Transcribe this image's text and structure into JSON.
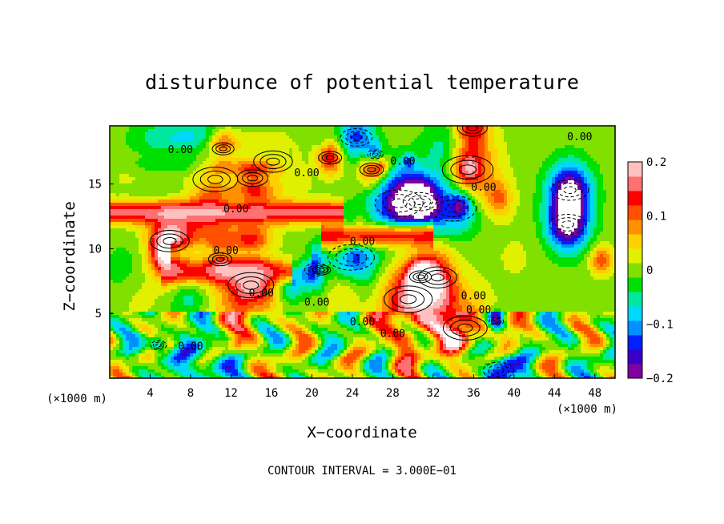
{
  "chart_data": {
    "type": "heatmap",
    "title": "disturbunce of potential temperature",
    "xlabel": "X−coordinate",
    "ylabel": "Z−coordinate",
    "x_unit_label": "(×1000 m)",
    "x_unit_label_right": "(×1000 m)",
    "xlim": [
      0,
      50
    ],
    "ylim": [
      0,
      19.5
    ],
    "x_ticks": [
      4,
      8,
      12,
      16,
      20,
      24,
      28,
      32,
      36,
      40,
      44,
      48
    ],
    "y_ticks": [
      5,
      10,
      15
    ],
    "colorbar": {
      "range": [
        -0.2,
        0.2
      ],
      "ticks": [
        "0.2",
        "0.1",
        "0",
        "−0.1",
        "−0.2"
      ],
      "tick_values": [
        0.2,
        0.1,
        0,
        -0.1,
        -0.2
      ],
      "colors": [
        "#8000a0",
        "#3800c8",
        "#0020ff",
        "#0090ff",
        "#00d8ff",
        "#00e8a0",
        "#00e000",
        "#80e000",
        "#e0f000",
        "#ffd000",
        "#ff9000",
        "#ff5000",
        "#ff0000",
        "#ff7070",
        "#ffc0c0"
      ]
    },
    "contour_labels": [
      "0.00",
      "0.00",
      "0.00",
      "0.00",
      "0.00",
      "0.00",
      "0.00",
      "0.00",
      "0.00",
      "0.00",
      "0.00",
      "0.00",
      "0.00",
      "0.00",
      "0.00"
    ],
    "footer": "CONTOUR INTERVAL = 3.000E−01",
    "grid": false
  }
}
